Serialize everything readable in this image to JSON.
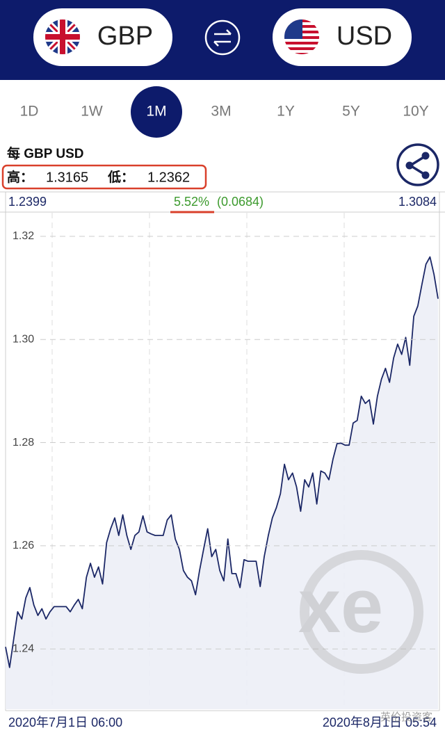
{
  "header": {
    "base": "GBP",
    "quote": "USD"
  },
  "tabs": [
    "1D",
    "1W",
    "1M",
    "3M",
    "1Y",
    "5Y",
    "10Y"
  ],
  "active_tab": 2,
  "info": {
    "title": "每 GBP USD",
    "high_label": "高：",
    "high": "1.3165",
    "low_label": "低：",
    "low": "1.2362"
  },
  "stats": {
    "start": "1.2399",
    "change_pct": "5.52%",
    "change_abs": "(0.0684)",
    "end": "1.3084"
  },
  "watermark": {
    "logo": "xe",
    "credit": "英伦投资客"
  },
  "chart_data": {
    "type": "line",
    "categories": [
      "2020年7月1日 06:00",
      null,
      null,
      null,
      null,
      null,
      null,
      null,
      null,
      null,
      null,
      null,
      null,
      null,
      null,
      null,
      null,
      null,
      null,
      null,
      null,
      null,
      null,
      null,
      null,
      null,
      null,
      null,
      null,
      null,
      null,
      null,
      null,
      null,
      null,
      null,
      null,
      null,
      null,
      null,
      null,
      null,
      null,
      null,
      null,
      null,
      null,
      null,
      null,
      null,
      null,
      null,
      null,
      null,
      null,
      null,
      null,
      null,
      null,
      null,
      null,
      null,
      null,
      null,
      null,
      null,
      null,
      null,
      null,
      null,
      null,
      null,
      null,
      null,
      null,
      null,
      null,
      null,
      null,
      null,
      null,
      null,
      null,
      null,
      null,
      null,
      null,
      null,
      null,
      null,
      null,
      null,
      null,
      null,
      null,
      null,
      null,
      null,
      null,
      null,
      null,
      null,
      null,
      null,
      null,
      null,
      null,
      "2020年8月1日 05:54"
    ],
    "series": [
      {
        "color": "#1b2766",
        "values": [
          1.2404,
          1.2364,
          1.2418,
          1.2472,
          1.2458,
          1.2499,
          1.2519,
          1.2485,
          1.2465,
          1.2478,
          1.2458,
          1.2472,
          1.2482,
          1.2482,
          1.2482,
          1.2482,
          1.2472,
          1.2485,
          1.2496,
          1.2478,
          1.2539,
          1.2566,
          1.2539,
          1.2559,
          1.2526,
          1.2606,
          1.2633,
          1.2654,
          1.262,
          1.266,
          1.262,
          1.2593,
          1.262,
          1.2627,
          1.2658,
          1.2627,
          1.2623,
          1.262,
          1.262,
          1.262,
          1.265,
          1.266,
          1.2613,
          1.2593,
          1.2552,
          1.2539,
          1.2532,
          1.2505,
          1.2552,
          1.2593,
          1.2633,
          1.2579,
          1.2593,
          1.2552,
          1.2532,
          1.2613,
          1.2546,
          1.2546,
          1.2519,
          1.2573,
          1.257,
          1.257,
          1.257,
          1.2521,
          1.2579,
          1.262,
          1.2654,
          1.2674,
          1.2701,
          1.2758,
          1.2728,
          1.2741,
          1.2714,
          1.2667,
          1.2728,
          1.2714,
          1.2741,
          1.2681,
          1.2745,
          1.2741,
          1.2728,
          1.2768,
          1.2798,
          1.2799,
          1.2795,
          1.2795,
          1.2838,
          1.2843,
          1.289,
          1.2876,
          1.2883,
          1.2836,
          1.289,
          1.2923,
          1.2944,
          1.2917,
          1.2964,
          1.2991,
          1.2971,
          1.3004,
          1.295,
          1.3045,
          1.3065,
          1.3106,
          1.3146,
          1.316,
          1.3126,
          1.3079
        ]
      }
    ],
    "ylim": [
      1.2283,
      1.3247
    ],
    "yticks": [
      1.24,
      1.26,
      1.28,
      {
        "value": 1.3,
        "label": "1.30"
      },
      1.32
    ],
    "grid": true,
    "area_color": "#eceef6"
  }
}
